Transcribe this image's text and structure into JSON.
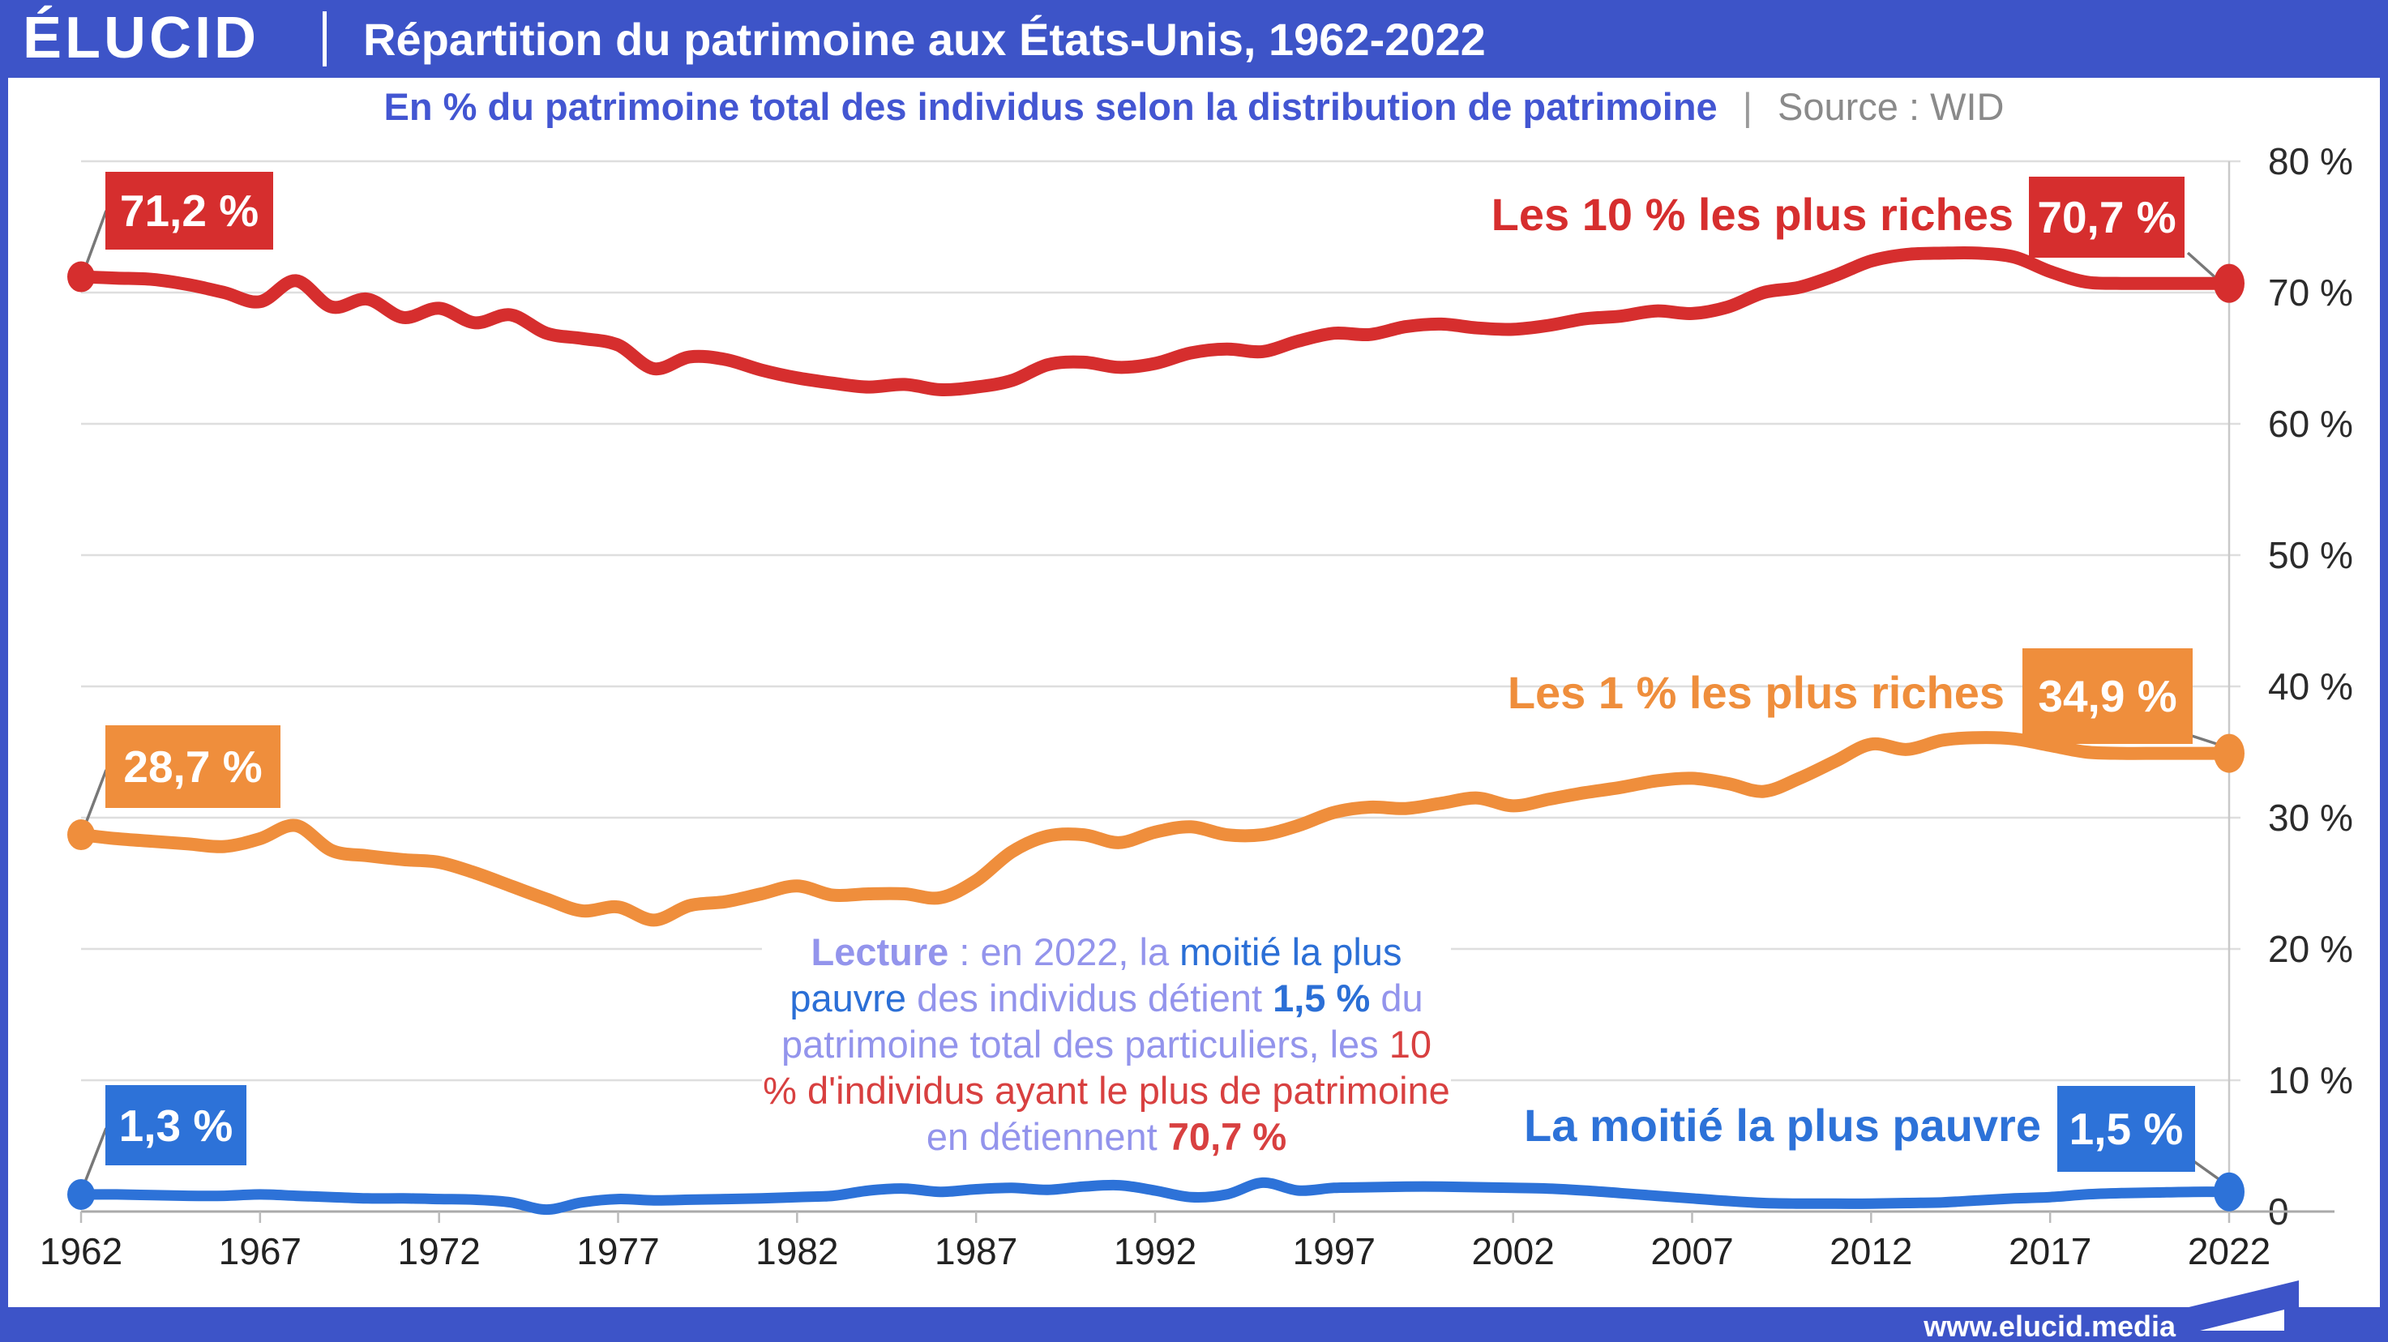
{
  "header": {
    "logo": "ÉLUCID",
    "title": "Répartition du patrimoine aux États-Unis, 1962-2022"
  },
  "subtitle": {
    "text": "En % du patrimoine total des individus selon la distribution de patrimoine",
    "separator": "|",
    "source": "Source : WID"
  },
  "footer": {
    "url": "www.elucid.media"
  },
  "colors": {
    "chrome_blue": "#3d54c8",
    "subtitle_blue": "#4356d2",
    "source_gray": "#8a8a8a",
    "red": "#d62e2e",
    "orange": "#ef8e3c",
    "blue": "#2d72d8",
    "periwinkle": "#9394ec",
    "gridline": "#dedede",
    "axis_line": "#aaaaaa",
    "tick_text": "#2b2b2b",
    "connector_gray": "#787878"
  },
  "annotation": {
    "segments": [
      {
        "text": "Lecture",
        "color": "periwinkle",
        "bold": true
      },
      {
        "text": " : en 2022, la ",
        "color": "periwinkle",
        "bold": false
      },
      {
        "text": "moitié la plus pauvre",
        "color": "blue",
        "bold": false
      },
      {
        "text": " des individus détient ",
        "color": "periwinkle",
        "bold": false
      },
      {
        "text": "1,5 %",
        "color": "blue",
        "bold": true
      },
      {
        "text": " du patrimoine total des particuliers, les ",
        "color": "periwinkle",
        "bold": false
      },
      {
        "text": "10 % d'individus ayant le plus de patrimoine",
        "color": "red",
        "bold": false
      },
      {
        "text": " en détiennent ",
        "color": "periwinkle",
        "bold": false
      },
      {
        "text": "70,7 %",
        "color": "red",
        "bold": true
      }
    ]
  },
  "chart_data": {
    "type": "line",
    "title": "Répartition du patrimoine aux États-Unis, 1962-2022",
    "ylabel": "",
    "xlabel": "",
    "ylim": [
      0,
      80
    ],
    "xlim": [
      1962,
      2022
    ],
    "grid": "horizontal",
    "legend_position": "inline-right",
    "y_tick_values": [
      80,
      70,
      60,
      50,
      40,
      30,
      20,
      10,
      0
    ],
    "y_tick_labels": [
      "80 %",
      "70 %",
      "60 %",
      "50 %",
      "40 %",
      "30 %",
      "20 %",
      "10 %",
      "0"
    ],
    "x_tick_values": [
      1962,
      1967,
      1972,
      1977,
      1982,
      1987,
      1992,
      1997,
      2002,
      2007,
      2012,
      2017,
      2022
    ],
    "x_tick_labels": [
      "1962",
      "1967",
      "1972",
      "1977",
      "1982",
      "1987",
      "1992",
      "1997",
      "2002",
      "2007",
      "2012",
      "2017",
      "2022"
    ],
    "years": [
      1962,
      1963,
      1964,
      1965,
      1966,
      1967,
      1968,
      1969,
      1970,
      1971,
      1972,
      1973,
      1974,
      1975,
      1976,
      1977,
      1978,
      1979,
      1980,
      1981,
      1982,
      1983,
      1984,
      1985,
      1986,
      1987,
      1988,
      1989,
      1990,
      1991,
      1992,
      1993,
      1994,
      1995,
      1996,
      1997,
      1998,
      1999,
      2000,
      2001,
      2002,
      2003,
      2004,
      2005,
      2006,
      2007,
      2008,
      2009,
      2010,
      2011,
      2012,
      2013,
      2014,
      2015,
      2016,
      2017,
      2018,
      2019,
      2020,
      2021,
      2022
    ],
    "series": [
      {
        "name": "Les 10 % les plus riches",
        "color_key": "red",
        "start_label": "71,2 %",
        "end_label": "70,7 %",
        "start_value": 71.2,
        "end_value": 70.7,
        "values": [
          71.2,
          71.1,
          71.0,
          70.6,
          70.0,
          69.3,
          70.9,
          68.9,
          69.5,
          68.1,
          68.8,
          67.7,
          68.3,
          66.9,
          66.5,
          66.0,
          64.2,
          65.1,
          64.9,
          64.1,
          63.5,
          63.1,
          62.8,
          63.0,
          62.6,
          62.8,
          63.3,
          64.5,
          64.7,
          64.3,
          64.6,
          65.4,
          65.7,
          65.5,
          66.3,
          66.9,
          66.8,
          67.4,
          67.6,
          67.3,
          67.2,
          67.5,
          68.0,
          68.2,
          68.6,
          68.4,
          68.9,
          70.0,
          70.4,
          71.3,
          72.4,
          72.9,
          73.0,
          73.0,
          72.7,
          71.6,
          70.8,
          70.7,
          70.7,
          70.7,
          70.7
        ]
      },
      {
        "name": "Les 1 % les plus riches",
        "color_key": "orange",
        "start_label": "28,7 %",
        "end_label": "34,9 %",
        "start_value": 28.7,
        "end_value": 34.9,
        "values": [
          28.7,
          28.4,
          28.2,
          28.0,
          27.8,
          28.4,
          29.4,
          27.5,
          27.1,
          26.8,
          26.6,
          25.8,
          24.8,
          23.8,
          22.9,
          23.2,
          22.2,
          23.3,
          23.6,
          24.2,
          24.8,
          24.1,
          24.2,
          24.2,
          23.9,
          25.2,
          27.4,
          28.6,
          28.7,
          28.1,
          28.9,
          29.3,
          28.7,
          28.7,
          29.4,
          30.4,
          30.8,
          30.7,
          31.1,
          31.5,
          30.9,
          31.4,
          31.9,
          32.3,
          32.8,
          33.0,
          32.6,
          32.0,
          33.0,
          34.3,
          35.6,
          35.2,
          35.9,
          36.1,
          36.0,
          35.5,
          35.0,
          34.9,
          34.9,
          34.9,
          34.9
        ]
      },
      {
        "name": "La moitié la plus pauvre",
        "color_key": "blue",
        "start_label": "1,3 %",
        "end_label": "1,5 %",
        "start_value": 1.3,
        "end_value": 1.5,
        "values": [
          1.3,
          1.3,
          1.25,
          1.2,
          1.2,
          1.3,
          1.2,
          1.1,
          1.0,
          1.0,
          0.95,
          0.9,
          0.7,
          0.15,
          0.7,
          0.95,
          0.85,
          0.9,
          0.95,
          1.0,
          1.1,
          1.2,
          1.6,
          1.75,
          1.5,
          1.7,
          1.8,
          1.65,
          1.9,
          2.0,
          1.6,
          1.1,
          1.3,
          2.2,
          1.6,
          1.8,
          1.85,
          1.9,
          1.9,
          1.85,
          1.8,
          1.75,
          1.6,
          1.4,
          1.2,
          1.0,
          0.8,
          0.65,
          0.6,
          0.6,
          0.6,
          0.65,
          0.7,
          0.85,
          1.0,
          1.1,
          1.3,
          1.4,
          1.45,
          1.5,
          1.5
        ]
      }
    ]
  }
}
